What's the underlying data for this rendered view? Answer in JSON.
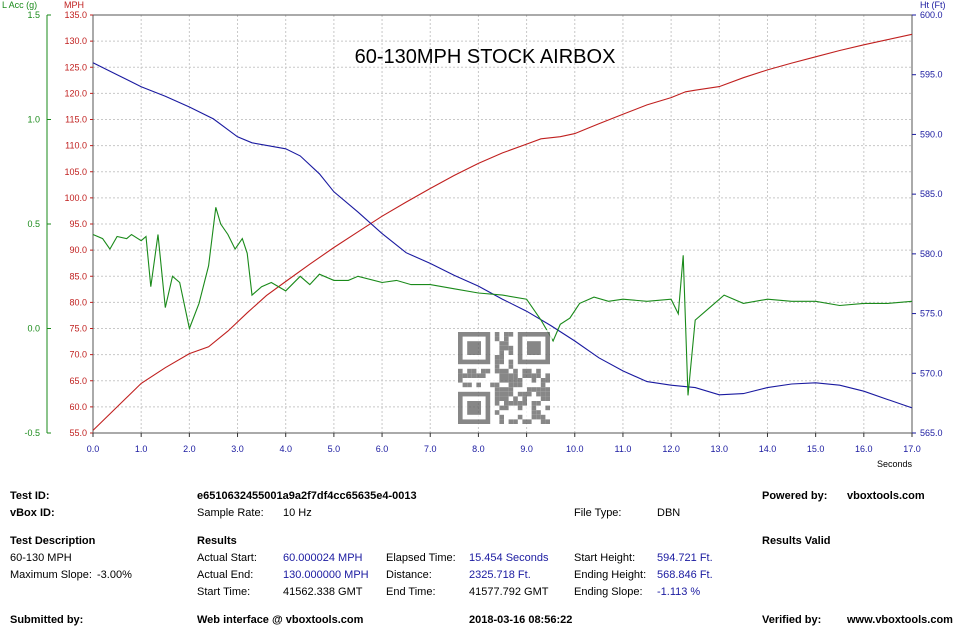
{
  "chart_data": {
    "type": "line",
    "title": "60-130MPH STOCK AIRBOX",
    "x_axis": {
      "label": "Seconds",
      "range": [
        0,
        17
      ],
      "ticks": [
        "0.0",
        "1.0",
        "2.0",
        "3.0",
        "4.0",
        "5.0",
        "6.0",
        "7.0",
        "8.0",
        "9.0",
        "10.0",
        "11.0",
        "12.0",
        "13.0",
        "14.0",
        "15.0",
        "16.0",
        "17.0"
      ]
    },
    "y_axes": {
      "lacc": {
        "label": "L Acc (g)",
        "color": "#1a8a1a",
        "range": [
          -0.5,
          1.5
        ],
        "ticks": [
          "1.5",
          "1.0",
          "0.5",
          "0.0",
          "-0.5"
        ]
      },
      "mph": {
        "label": "MPH",
        "color": "#c0201f",
        "range": [
          55,
          135
        ],
        "ticks": [
          "135.0",
          "130.0",
          "125.0",
          "120.0",
          "115.0",
          "110.0",
          "105.0",
          "100.0",
          "95.0",
          "90.0",
          "85.0",
          "80.0",
          "75.0",
          "70.0",
          "65.0",
          "60.0",
          "55.0"
        ]
      },
      "ht": {
        "label": "Ht (Ft)",
        "color": "#1a1aa0",
        "range": [
          565,
          600
        ],
        "ticks": [
          "600.0",
          "595.0",
          "590.0",
          "585.0",
          "580.0",
          "575.0",
          "570.0",
          "565.0"
        ]
      }
    },
    "grid": true,
    "series": [
      {
        "name": "MPH",
        "axis": "mph",
        "color": "#c0201f",
        "points": [
          [
            0,
            55.5
          ],
          [
            0.5,
            60
          ],
          [
            1,
            64.5
          ],
          [
            1.5,
            67.5
          ],
          [
            2,
            70.2
          ],
          [
            2.4,
            71.5
          ],
          [
            2.8,
            74.5
          ],
          [
            3.2,
            78
          ],
          [
            3.6,
            81.3
          ],
          [
            4,
            84
          ],
          [
            4.5,
            87.3
          ],
          [
            5,
            90.5
          ],
          [
            5.5,
            93.5
          ],
          [
            6,
            96.5
          ],
          [
            6.5,
            99.2
          ],
          [
            7,
            101.8
          ],
          [
            7.5,
            104.3
          ],
          [
            8,
            106.6
          ],
          [
            8.5,
            108.6
          ],
          [
            9,
            110.3
          ],
          [
            9.3,
            111.3
          ],
          [
            9.7,
            111.7
          ],
          [
            10,
            112.3
          ],
          [
            10.5,
            114.2
          ],
          [
            11,
            116
          ],
          [
            11.5,
            117.8
          ],
          [
            12,
            119.2
          ],
          [
            12.3,
            120.3
          ],
          [
            12.5,
            120.6
          ],
          [
            13,
            121.3
          ],
          [
            13.5,
            123
          ],
          [
            14,
            124.5
          ],
          [
            14.5,
            125.8
          ],
          [
            15,
            127
          ],
          [
            15.5,
            128.2
          ],
          [
            16,
            129.3
          ],
          [
            16.5,
            130.3
          ],
          [
            17,
            131.3
          ]
        ]
      },
      {
        "name": "Ht (Ft)",
        "axis": "ht",
        "color": "#1a1aa0",
        "points": [
          [
            0,
            596
          ],
          [
            0.5,
            595
          ],
          [
            1,
            594
          ],
          [
            1.5,
            593.2
          ],
          [
            2,
            592.3
          ],
          [
            2.5,
            591.3
          ],
          [
            3,
            589.8
          ],
          [
            3.3,
            589.3
          ],
          [
            4,
            588.8
          ],
          [
            4.3,
            588.2
          ],
          [
            4.7,
            586.7
          ],
          [
            5,
            585.2
          ],
          [
            5.5,
            583.5
          ],
          [
            6,
            581.7
          ],
          [
            6.5,
            580.1
          ],
          [
            7,
            579.2
          ],
          [
            7.5,
            578.2
          ],
          [
            8,
            577.3
          ],
          [
            8.5,
            576.2
          ],
          [
            9,
            575.2
          ],
          [
            9.5,
            574
          ],
          [
            10,
            572.7
          ],
          [
            10.5,
            571.3
          ],
          [
            11,
            570.2
          ],
          [
            11.5,
            569.3
          ],
          [
            12,
            569
          ],
          [
            12.5,
            568.8
          ],
          [
            13,
            568.2
          ],
          [
            13.5,
            568.3
          ],
          [
            14,
            568.8
          ],
          [
            14.5,
            569.1
          ],
          [
            15,
            569.2
          ],
          [
            15.5,
            569
          ],
          [
            16,
            568.5
          ],
          [
            16.5,
            567.8
          ],
          [
            17,
            567.1
          ]
        ]
      },
      {
        "name": "L Acc (g)",
        "axis": "lacc",
        "color": "#1a8a1a",
        "points": [
          [
            0,
            0.45
          ],
          [
            0.2,
            0.43
          ],
          [
            0.35,
            0.38
          ],
          [
            0.5,
            0.44
          ],
          [
            0.7,
            0.43
          ],
          [
            0.8,
            0.45
          ],
          [
            1,
            0.42
          ],
          [
            1.1,
            0.44
          ],
          [
            1.2,
            0.2
          ],
          [
            1.35,
            0.45
          ],
          [
            1.5,
            0.1
          ],
          [
            1.65,
            0.25
          ],
          [
            1.8,
            0.22
          ],
          [
            2,
            0.0
          ],
          [
            2.2,
            0.12
          ],
          [
            2.4,
            0.3
          ],
          [
            2.55,
            0.58
          ],
          [
            2.65,
            0.5
          ],
          [
            2.8,
            0.45
          ],
          [
            2.95,
            0.38
          ],
          [
            3.1,
            0.43
          ],
          [
            3.2,
            0.36
          ],
          [
            3.3,
            0.16
          ],
          [
            3.5,
            0.2
          ],
          [
            3.7,
            0.22
          ],
          [
            4,
            0.18
          ],
          [
            4.3,
            0.25
          ],
          [
            4.5,
            0.21
          ],
          [
            4.7,
            0.26
          ],
          [
            5,
            0.23
          ],
          [
            5.3,
            0.23
          ],
          [
            5.5,
            0.25
          ],
          [
            6,
            0.22
          ],
          [
            6.3,
            0.23
          ],
          [
            6.6,
            0.21
          ],
          [
            7,
            0.21
          ],
          [
            7.5,
            0.19
          ],
          [
            8,
            0.17
          ],
          [
            8.5,
            0.16
          ],
          [
            9,
            0.14
          ],
          [
            9.3,
            0.04
          ],
          [
            9.4,
            0.0
          ],
          [
            9.55,
            -0.06
          ],
          [
            9.7,
            0.02
          ],
          [
            9.9,
            0.05
          ],
          [
            10.1,
            0.12
          ],
          [
            10.4,
            0.15
          ],
          [
            10.7,
            0.13
          ],
          [
            11,
            0.14
          ],
          [
            11.5,
            0.13
          ],
          [
            12,
            0.14
          ],
          [
            12.15,
            0.07
          ],
          [
            12.25,
            0.35
          ],
          [
            12.35,
            -0.32
          ],
          [
            12.5,
            0.04
          ],
          [
            12.7,
            0.08
          ],
          [
            12.9,
            0.12
          ],
          [
            13.1,
            0.16
          ],
          [
            13.5,
            0.12
          ],
          [
            14,
            0.14
          ],
          [
            14.5,
            0.13
          ],
          [
            15,
            0.13
          ],
          [
            15.5,
            0.11
          ],
          [
            16,
            0.12
          ],
          [
            16.5,
            0.12
          ],
          [
            17,
            0.13
          ]
        ]
      }
    ]
  },
  "info": {
    "test_id_label": "Test ID:",
    "test_id_value": "e6510632455001a9a2f7df4cc65635e4-0013",
    "vbox_id_label": "vBox ID:",
    "sample_rate_label": "Sample Rate:",
    "sample_rate_value": "10 Hz",
    "file_type_label": "File Type:",
    "file_type_value": "DBN",
    "powered_by_label": "Powered by:",
    "powered_by_value": "vboxtools.com",
    "test_description_label": "Test Description",
    "test_description_line1": "60-130 MPH",
    "max_slope_label": "Maximum Slope:",
    "max_slope_value": "-3.00%",
    "results_label": "Results",
    "results_valid_label": "Results Valid",
    "actual_start_label": "Actual Start:",
    "actual_start_value": "60.000024 MPH",
    "elapsed_label": "Elapsed Time:",
    "elapsed_value": "15.454 Seconds",
    "start_height_label": "Start Height:",
    "start_height_value": "594.721 Ft.",
    "actual_end_label": "Actual End:",
    "actual_end_value": "130.000000 MPH",
    "distance_label": "Distance:",
    "distance_value": "2325.718 Ft.",
    "ending_height_label": "Ending Height:",
    "ending_height_value": "568.846 Ft.",
    "start_time_label": "Start Time:",
    "start_time_value": "41562.338 GMT",
    "end_time_label": "End Time:",
    "end_time_value": "41577.792 GMT",
    "ending_slope_label": "Ending Slope:",
    "ending_slope_value": "-1.113 %",
    "submitted_by_label": "Submitted by:",
    "web_interface_label": "Web interface @ vboxtools.com",
    "timestamp": "2018-03-16 08:56:22",
    "verified_by_label": "Verified by:",
    "verified_by_value": "www.vboxtools.com"
  }
}
